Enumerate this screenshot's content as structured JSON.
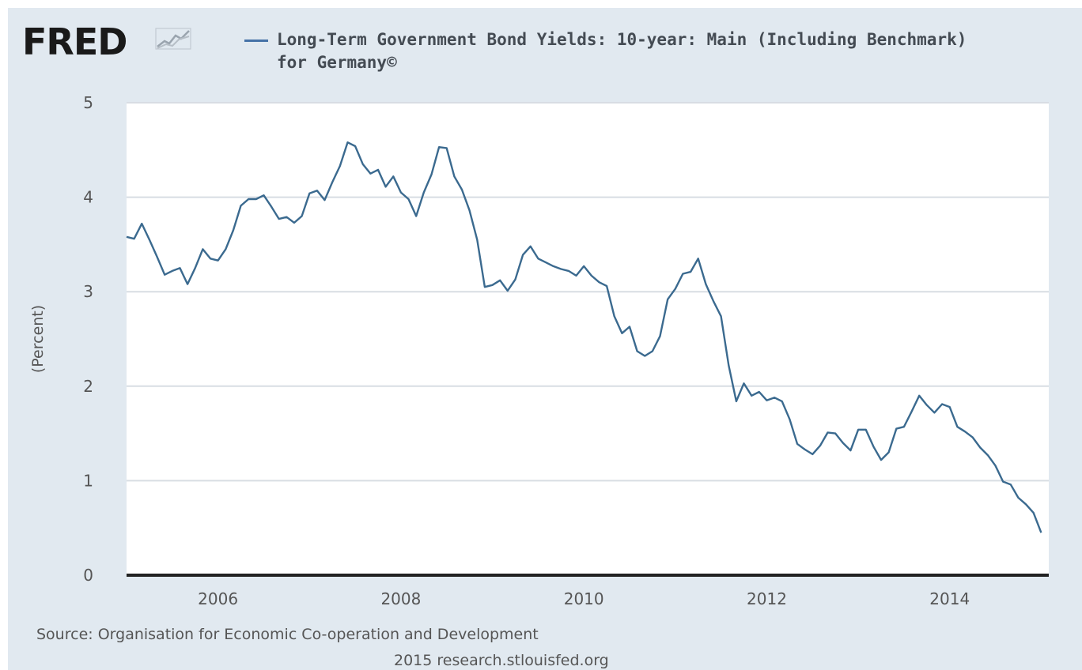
{
  "logo": {
    "text": "FRED",
    "icon": "line-graph-icon"
  },
  "legend": {
    "label": "Long-Term Government Bond Yields: 10-year: Main (Including Benchmark) for Germany©",
    "color": "#4572a7"
  },
  "colors": {
    "background": "#e1e9f0",
    "plot_background": "#ffffff",
    "line": "#3b6a8f",
    "gridline": "#d8dde3",
    "axis": "#222222"
  },
  "source": "Source: Organisation for Economic Co-operation and Development",
  "footer": "2015 research.stlouisfed.org",
  "chart_data": {
    "type": "line",
    "title": "",
    "xlabel": "",
    "ylabel": "(Percent)",
    "xlim": [
      2005.0,
      2015.083
    ],
    "ylim": [
      0,
      5
    ],
    "x_ticks": [
      2006,
      2008,
      2010,
      2012,
      2014
    ],
    "y_ticks": [
      0,
      1,
      2,
      3,
      4,
      5
    ],
    "grid": true,
    "legend_position": "top",
    "series": [
      {
        "name": "Long-Term Government Bond Yields: 10-year: Main (Including Benchmark) for Germany©",
        "x_start": 2005.0,
        "x_step": 0.08333,
        "values": [
          3.58,
          3.56,
          3.72,
          3.55,
          3.37,
          3.18,
          3.22,
          3.25,
          3.08,
          3.25,
          3.45,
          3.35,
          3.33,
          3.45,
          3.65,
          3.91,
          3.98,
          3.98,
          4.02,
          3.9,
          3.77,
          3.79,
          3.73,
          3.8,
          4.04,
          4.07,
          3.97,
          4.16,
          4.33,
          4.58,
          4.54,
          4.35,
          4.25,
          4.29,
          4.11,
          4.22,
          4.05,
          3.98,
          3.8,
          4.05,
          4.24,
          4.53,
          4.52,
          4.22,
          4.08,
          3.86,
          3.55,
          3.05,
          3.07,
          3.12,
          3.01,
          3.13,
          3.39,
          3.48,
          3.35,
          3.31,
          3.27,
          3.24,
          3.22,
          3.17,
          3.27,
          3.17,
          3.1,
          3.06,
          2.74,
          2.56,
          2.63,
          2.37,
          2.32,
          2.37,
          2.53,
          2.92,
          3.03,
          3.19,
          3.21,
          3.35,
          3.08,
          2.9,
          2.74,
          2.22,
          1.84,
          2.03,
          1.9,
          1.94,
          1.85,
          1.88,
          1.84,
          1.65,
          1.39,
          1.33,
          1.28,
          1.37,
          1.51,
          1.5,
          1.4,
          1.32,
          1.54,
          1.54,
          1.36,
          1.22,
          1.3,
          1.55,
          1.57,
          1.73,
          1.9,
          1.8,
          1.72,
          1.81,
          1.78,
          1.57,
          1.52,
          1.46,
          1.35,
          1.27,
          1.16,
          0.99,
          0.96,
          0.82,
          0.75,
          0.66,
          0.45
        ]
      }
    ]
  }
}
